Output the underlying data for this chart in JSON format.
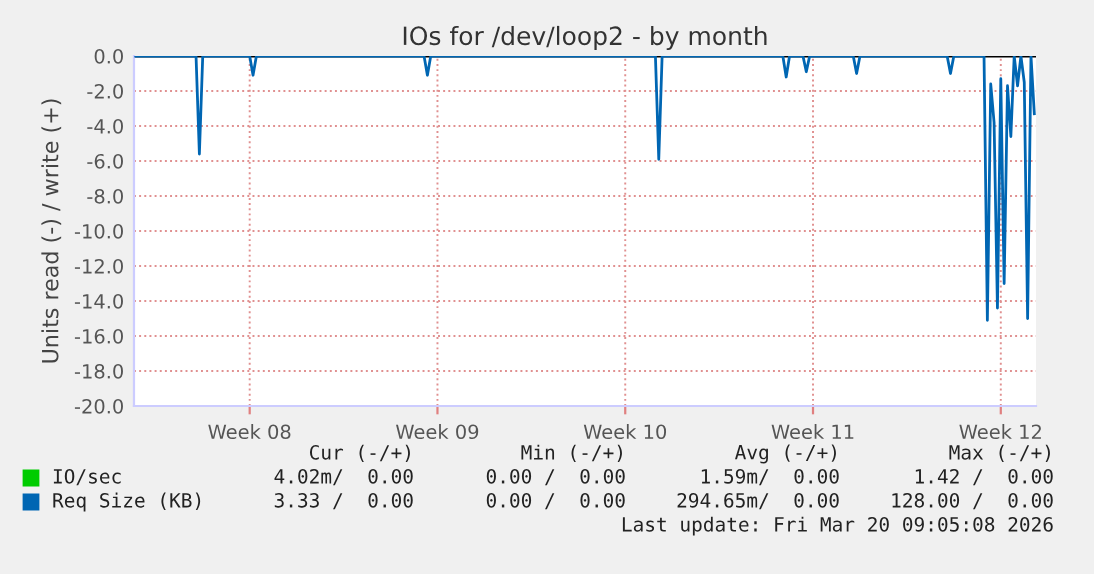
{
  "chart_data": {
    "type": "line",
    "title": "IOs for /dev/loop2 - by month",
    "ylabel": "Units read (-) / write (+)",
    "ylim": [
      -20,
      0
    ],
    "yticks": [
      {
        "value": -20,
        "label": "-20.0"
      },
      {
        "value": -18,
        "label": "-18.0"
      },
      {
        "value": -16,
        "label": "-16.0"
      },
      {
        "value": -14,
        "label": "-14.0"
      },
      {
        "value": -12,
        "label": "-12.0"
      },
      {
        "value": -10,
        "label": "-10.0"
      },
      {
        "value": -8,
        "label": "-8.0"
      },
      {
        "value": -6,
        "label": "-6.0"
      },
      {
        "value": -4,
        "label": "-4.0"
      },
      {
        "value": -2,
        "label": "-2.0"
      },
      {
        "value": 0,
        "label": "0.0"
      }
    ],
    "categories": [
      null,
      null,
      null,
      null,
      null,
      null,
      null,
      null,
      null,
      null,
      null,
      null,
      null,
      null,
      null,
      null,
      null,
      null,
      null,
      null,
      null,
      null,
      null,
      null,
      null,
      null,
      null,
      null,
      null,
      null,
      null,
      null,
      null,
      null,
      "Week 08",
      null,
      null,
      null,
      null,
      null,
      null,
      null,
      null,
      null,
      null,
      null,
      null,
      null,
      null,
      null,
      null,
      null,
      null,
      null,
      null,
      null,
      null,
      null,
      null,
      null,
      null,
      null,
      null,
      null,
      null,
      null,
      null,
      null,
      null,
      null,
      null,
      null,
      null,
      null,
      null,
      null,
      null,
      null,
      null,
      null,
      null,
      null,
      null,
      null,
      null,
      null,
      null,
      null,
      null,
      null,
      "Week 09",
      null,
      null,
      null,
      null,
      null,
      null,
      null,
      null,
      null,
      null,
      null,
      null,
      null,
      null,
      null,
      null,
      null,
      null,
      null,
      null,
      null,
      null,
      null,
      null,
      null,
      null,
      null,
      null,
      null,
      null,
      null,
      null,
      null,
      null,
      null,
      null,
      null,
      null,
      null,
      null,
      null,
      null,
      null,
      null,
      null,
      null,
      null,
      null,
      null,
      null,
      null,
      null,
      null,
      null,
      null,
      "Week 10",
      null,
      null,
      null,
      null,
      null,
      null,
      null,
      null,
      null,
      null,
      null,
      null,
      null,
      null,
      null,
      null,
      null,
      null,
      null,
      null,
      null,
      null,
      null,
      null,
      null,
      null,
      null,
      null,
      null,
      null,
      null,
      null,
      null,
      null,
      null,
      null,
      null,
      null,
      null,
      null,
      null,
      null,
      null,
      null,
      null,
      null,
      null,
      null,
      null,
      null,
      null,
      null,
      null,
      null,
      null,
      "Week 11",
      null,
      null,
      null,
      null,
      null,
      null,
      null,
      null,
      null,
      null,
      null,
      null,
      null,
      null,
      null,
      null,
      null,
      null,
      null,
      null,
      null,
      null,
      null,
      null,
      null,
      null,
      null,
      null,
      null,
      null,
      null,
      null,
      null,
      null,
      null,
      null,
      null,
      null,
      null,
      null,
      null,
      null,
      null,
      null,
      null,
      null,
      null,
      null,
      null,
      null,
      null,
      null,
      null,
      null,
      null,
      "Week 12",
      null,
      null,
      null,
      null,
      null,
      null,
      null,
      null,
      null,
      null
    ],
    "grid": true,
    "legend": "bottom left",
    "ref_lines": [
      {
        "axis": "y",
        "value": 0,
        "color": "#000000"
      }
    ],
    "series": [
      {
        "name": "IO/sec",
        "color": "#00cc00",
        "values": [
          null,
          null,
          null,
          null,
          null,
          null,
          null,
          null,
          null,
          null,
          null,
          null,
          null,
          null,
          null,
          null,
          null,
          null,
          null,
          null,
          null,
          null,
          null,
          null,
          null,
          null,
          null,
          null,
          null,
          null,
          null,
          null,
          null,
          null,
          null,
          null,
          null,
          null,
          null,
          null,
          null,
          null,
          null,
          null,
          null,
          null,
          null,
          null,
          null,
          null,
          null,
          null,
          null,
          null,
          null,
          null,
          null,
          null,
          null,
          null,
          null,
          null,
          null,
          null,
          null,
          null,
          null,
          null,
          null,
          null,
          null,
          null,
          null,
          null,
          null,
          null,
          null,
          null,
          null,
          null,
          null,
          null,
          null,
          null,
          null,
          null,
          null,
          null,
          null,
          null,
          null,
          null,
          null,
          null,
          null,
          null,
          null,
          null,
          null,
          null,
          null,
          null,
          null,
          null,
          null,
          null,
          null,
          null,
          null,
          null,
          null,
          null,
          null,
          null,
          null,
          null,
          null,
          null,
          null,
          null,
          null,
          null,
          null,
          null,
          null,
          null,
          null,
          null,
          null,
          null,
          null,
          null,
          null,
          null,
          null,
          null,
          null,
          null,
          null,
          null,
          null,
          null,
          null,
          null,
          null,
          null,
          null,
          null,
          null,
          null,
          null,
          null,
          null,
          null,
          null,
          null,
          null,
          null,
          null,
          null,
          null,
          null,
          null,
          null,
          null,
          null,
          null,
          null,
          null,
          null,
          null,
          null,
          null,
          null,
          null,
          null,
          null,
          null,
          null,
          null,
          null,
          null,
          null,
          null,
          null,
          null,
          null,
          null,
          null,
          null,
          null,
          null,
          null,
          null,
          null,
          null,
          null,
          null,
          null,
          null,
          null,
          null,
          null,
          null,
          null,
          null,
          null,
          null,
          null,
          null,
          null,
          null,
          null,
          null,
          null,
          null,
          null,
          null,
          null,
          null,
          null,
          null,
          null,
          null,
          null,
          null,
          null,
          null,
          null,
          null,
          null,
          null,
          null,
          null,
          null,
          null,
          null,
          null,
          null,
          null,
          null,
          null,
          null,
          null,
          null,
          null,
          null,
          null,
          null,
          null,
          null,
          null,
          null,
          null,
          null,
          null,
          null,
          null,
          null,
          null,
          null,
          null,
          null,
          null,
          null,
          null,
          null,
          null,
          null
        ]
      },
      {
        "name": "Req Size (KB)",
        "color": "#0066b3",
        "values": [
          0,
          0,
          0,
          0,
          0,
          0,
          0,
          0,
          0,
          0,
          0,
          0,
          0,
          0,
          0,
          0,
          0,
          0,
          0,
          -5.6,
          0,
          0,
          0,
          0,
          0,
          0,
          0,
          0,
          0,
          0,
          0,
          0,
          0,
          0,
          0,
          -1.1,
          0,
          0,
          0,
          0,
          0,
          0,
          0,
          0,
          0,
          0,
          0,
          0,
          0,
          0,
          0,
          0,
          0,
          0,
          0,
          0,
          0,
          0,
          0,
          0,
          0,
          0,
          0,
          0,
          0,
          0,
          0,
          0,
          0,
          0,
          0,
          0,
          0,
          0,
          0,
          0,
          0,
          0,
          0,
          0,
          0,
          0,
          0,
          0,
          0,
          0,
          0,
          -1.1,
          0,
          0,
          0,
          0,
          0,
          0,
          0,
          0,
          0,
          0,
          0,
          0,
          0,
          0,
          0,
          0,
          0,
          0,
          0,
          0,
          0,
          0,
          0,
          0,
          0,
          0,
          0,
          0,
          0,
          0,
          0,
          0,
          0,
          0,
          0,
          0,
          0,
          0,
          0,
          0,
          0,
          0,
          0,
          0,
          0,
          0,
          0,
          0,
          0,
          0,
          0,
          0,
          0,
          0,
          0,
          0,
          0,
          0,
          0,
          0,
          0,
          0,
          0,
          0,
          0,
          0,
          0,
          0,
          -5.9,
          0,
          0,
          0,
          0,
          0,
          0,
          0,
          0,
          0,
          0,
          0,
          0,
          0,
          0,
          0,
          0,
          0,
          0,
          0,
          0,
          0,
          0,
          0,
          0,
          0,
          0,
          0,
          0,
          0,
          0,
          0,
          0,
          0,
          0,
          0,
          0,
          0,
          -1.2,
          0,
          0,
          0,
          0,
          0,
          -0.9,
          0,
          0,
          0,
          0,
          0,
          0,
          0,
          0,
          0,
          0,
          0,
          0,
          0,
          0,
          -1.0,
          0,
          0,
          0,
          0,
          0,
          0,
          0,
          0,
          0,
          0,
          0,
          0,
          0,
          0,
          0,
          0,
          0,
          0,
          0,
          0,
          0,
          0,
          0,
          0,
          0,
          0,
          0,
          -1.0,
          0,
          0,
          0,
          0,
          0,
          0,
          0,
          0,
          0,
          0,
          -15.1,
          -1.6,
          -3.8,
          -14.4,
          -1.3,
          -13.0,
          -1.7,
          -4.6,
          0,
          -1.7,
          0,
          -1.5,
          -15.0,
          0,
          -3.3
        ]
      }
    ],
    "annotations": [
      "Cur (-/+)",
      "Min (-/+)",
      "Avg (-/+)",
      "Max (-/+)",
      "4.02m/  0.00",
      "0.00 /  0.00",
      "1.59m/  0.00",
      "1.42 /  0.00",
      "3.33 /  0.00",
      "0.00 /  0.00",
      "294.65m/  0.00",
      "128.00 /  0.00",
      "Last update: Fri Mar 20 09:05:08 2026"
    ]
  }
}
